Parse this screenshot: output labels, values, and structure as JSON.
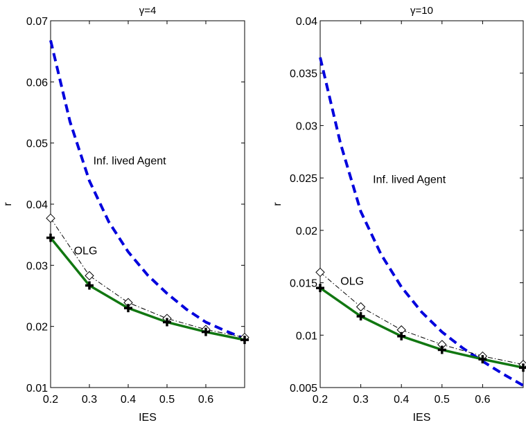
{
  "chart_data": [
    {
      "type": "line",
      "title": "γ=4",
      "xlabel": "IES",
      "ylabel": "r",
      "xlim": [
        0.2,
        0.7
      ],
      "ylim": [
        0.01,
        0.07
      ],
      "xticks": [
        "0.2",
        "0.3",
        "0.4",
        "0.5",
        "0.6"
      ],
      "yticks": [
        "0.01",
        "0.02",
        "0.03",
        "0.04",
        "0.05",
        "0.06",
        "0.07"
      ],
      "annotations": [
        {
          "text": "Inf. lived Agent",
          "x": 0.31,
          "y": 0.0465
        },
        {
          "text": "OLG",
          "x": 0.26,
          "y": 0.0318
        }
      ],
      "series": [
        {
          "key": "inf",
          "color": "#0000dd",
          "style": "dashed",
          "x": [
            0.2,
            0.25,
            0.3,
            0.35,
            0.4,
            0.45,
            0.5,
            0.55,
            0.6,
            0.65,
            0.7
          ],
          "y": [
            0.0668,
            0.0535,
            0.0438,
            0.0371,
            0.0322,
            0.0284,
            0.0254,
            0.0228,
            0.0207,
            0.0193,
            0.018
          ]
        },
        {
          "key": "olg_diamond",
          "color": "#000000",
          "style": "dashdot",
          "marker": "diamond",
          "x": [
            0.2,
            0.3,
            0.4,
            0.5,
            0.6,
            0.7
          ],
          "y": [
            0.0377,
            0.0283,
            0.0239,
            0.0213,
            0.0195,
            0.0182
          ]
        },
        {
          "key": "olg",
          "color": "#117711",
          "style": "solid",
          "marker": "plus",
          "x": [
            0.2,
            0.3,
            0.4,
            0.5,
            0.6,
            0.7
          ],
          "y": [
            0.0345,
            0.0267,
            0.023,
            0.0207,
            0.0191,
            0.0178
          ]
        }
      ]
    },
    {
      "type": "line",
      "title": "γ=10",
      "xlabel": "IES",
      "ylabel": "r",
      "xlim": [
        0.2,
        0.7
      ],
      "ylim": [
        0.005,
        0.04
      ],
      "xticks": [
        "0.2",
        "0.3",
        "0.4",
        "0.5",
        "0.6"
      ],
      "yticks": [
        "0.005",
        "0.01",
        "0.015",
        "0.02",
        "0.025",
        "0.03",
        "0.035",
        "0.04"
      ],
      "annotations": [
        {
          "text": "Inf. lived Agent",
          "x": 0.33,
          "y": 0.0245
        },
        {
          "text": "OLG",
          "x": 0.25,
          "y": 0.0148
        }
      ],
      "series": [
        {
          "key": "inf",
          "color": "#0000dd",
          "style": "dashed",
          "x": [
            0.2,
            0.25,
            0.3,
            0.35,
            0.4,
            0.45,
            0.5,
            0.55,
            0.6,
            0.65,
            0.7
          ],
          "y": [
            0.0365,
            0.0283,
            0.0218,
            0.0177,
            0.0146,
            0.0122,
            0.0103,
            0.0088,
            0.0075,
            0.0063,
            0.0052
          ]
        },
        {
          "key": "olg_diamond",
          "color": "#000000",
          "style": "dashdot",
          "marker": "diamond",
          "x": [
            0.2,
            0.3,
            0.4,
            0.5,
            0.6,
            0.7
          ],
          "y": [
            0.016,
            0.0127,
            0.0105,
            0.0091,
            0.008,
            0.0072
          ]
        },
        {
          "key": "olg",
          "color": "#117711",
          "style": "solid",
          "marker": "plus",
          "x": [
            0.2,
            0.3,
            0.4,
            0.5,
            0.6,
            0.7
          ],
          "y": [
            0.0145,
            0.0118,
            0.0099,
            0.0086,
            0.0077,
            0.0069
          ]
        }
      ]
    }
  ]
}
